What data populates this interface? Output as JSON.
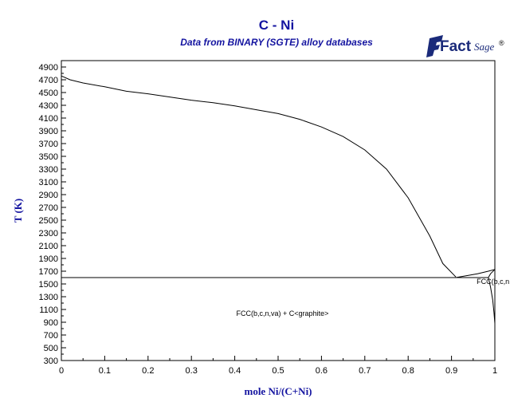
{
  "chart_data": {
    "type": "line",
    "title": "C - Ni",
    "subtitle": "Data from BINARY (SGTE) alloy databases",
    "xlabel": "mole Ni/(C+Ni)",
    "ylabel": "T (K)",
    "xlim": [
      0,
      1
    ],
    "ylim": [
      300,
      5000
    ],
    "x_ticks": [
      0,
      0.1,
      0.2,
      0.3,
      0.4,
      0.5,
      0.6,
      0.7,
      0.8,
      0.9,
      1
    ],
    "x_tick_labels": [
      "0",
      "0.1",
      "0.2",
      "0.3",
      "0.4",
      "0.5",
      "0.6",
      "0.7",
      "0.8",
      "0.9",
      "1"
    ],
    "y_ticks": [
      300,
      500,
      700,
      900,
      1100,
      1300,
      1500,
      1700,
      1900,
      2100,
      2300,
      2500,
      2700,
      2900,
      3100,
      3300,
      3500,
      3700,
      3900,
      4100,
      4300,
      4500,
      4700,
      4900
    ],
    "grid": false,
    "series": [
      {
        "x": [
          0,
          0.02,
          0.05,
          0.1,
          0.15,
          0.2,
          0.25,
          0.3,
          0.35,
          0.4,
          0.45,
          0.5,
          0.55,
          0.6,
          0.65,
          0.7,
          0.75,
          0.8,
          0.85,
          0.88,
          0.91
        ],
        "y": [
          4760,
          4700,
          4650,
          4590,
          4520,
          4480,
          4430,
          4380,
          4340,
          4290,
          4230,
          4170,
          4080,
          3960,
          3810,
          3600,
          3300,
          2850,
          2250,
          1820,
          1610
        ]
      },
      {
        "x": [
          0,
          0.91,
          0.985
        ],
        "y": [
          1600,
          1600,
          1600
        ]
      },
      {
        "x": [
          0.91,
          0.96,
          0.985,
          1.0
        ],
        "y": [
          1600,
          1660,
          1700,
          1728
        ]
      },
      {
        "x": [
          0.985,
          0.99,
          0.995,
          0.998,
          1.0
        ],
        "y": [
          1600,
          1450,
          1250,
          1050,
          880
        ]
      },
      {
        "x": [
          0.985,
          0.99,
          1.0
        ],
        "y": [
          1600,
          1660,
          1728
        ]
      }
    ],
    "annotations": [
      {
        "text": "FCC(b,c,n,va) + C<graphite>",
        "x": 0.51,
        "y": 1000
      },
      {
        "text": "FCC(b,c,n,va",
        "x": 0.958,
        "y": 1500
      }
    ],
    "logo": {
      "main": "Fact",
      "sub": "Sage",
      "mark": "®"
    }
  }
}
